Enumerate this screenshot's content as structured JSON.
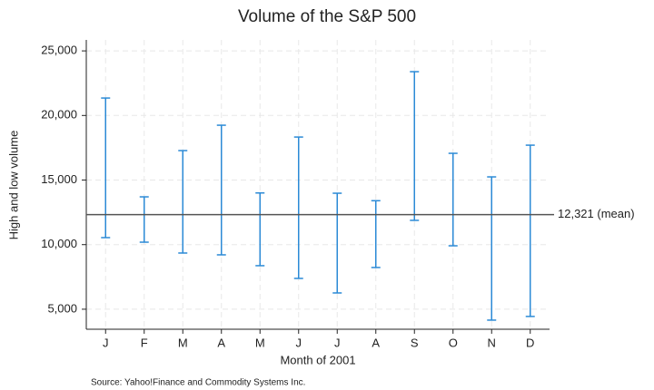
{
  "chart_data": {
    "type": "rcap",
    "title": "Volume of the S&P 500",
    "x_label": "Month of 2001",
    "y_label": "High and low volume",
    "note": "Source: Yahoo!Finance and Commodity Systems Inc.",
    "categories": [
      "J",
      "F",
      "M",
      "A",
      "M",
      "J",
      "J",
      "A",
      "S",
      "O",
      "N",
      "D"
    ],
    "high": [
      21350,
      13700,
      17280,
      19245,
      14000,
      18330,
      13980,
      13400,
      23390,
      17070,
      15245,
      17700
    ],
    "low": [
      10543,
      10190,
      9350,
      9210,
      8370,
      7385,
      6260,
      8230,
      11880,
      9910,
      4155,
      4440
    ],
    "color": "#2b8ad6",
    "mean": {
      "value": 12321,
      "label": "12,321 (mean)"
    },
    "ylim": [
      3450,
      25850
    ],
    "yticks": [
      {
        "value": 5000,
        "label": "5,000"
      },
      {
        "value": 10000,
        "label": "10,000"
      },
      {
        "value": 15000,
        "label": "15,000"
      },
      {
        "value": 20000,
        "label": "20,000"
      },
      {
        "value": 25000,
        "label": "25,000"
      }
    ],
    "grid": true
  }
}
